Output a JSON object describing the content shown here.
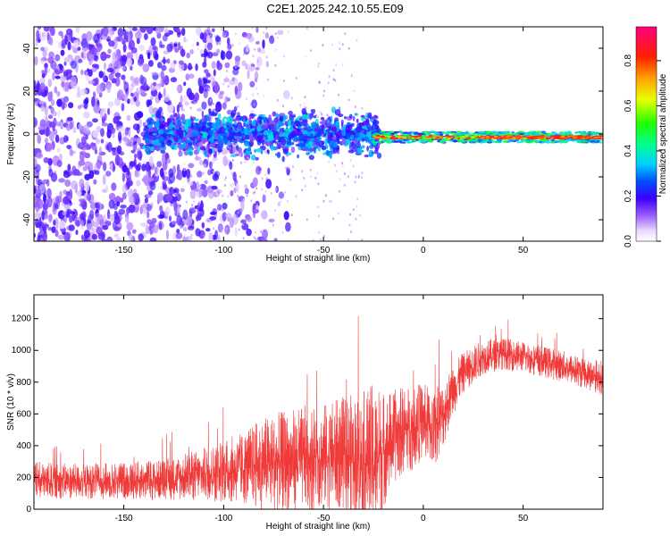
{
  "title": "C2E1.2025.242.10.55.E09",
  "chart_data": [
    {
      "type": "heatmap",
      "xlabel": "Height of straight line (km)",
      "ylabel": "Frequency (Hz)",
      "xlim": [
        -195,
        90
      ],
      "ylim": [
        -50,
        50
      ],
      "x_ticks": [
        -150,
        -100,
        -50,
        0,
        50
      ],
      "y_ticks": [
        -40,
        -20,
        0,
        20,
        40
      ],
      "colorbar": {
        "label": "Normalized spectral amplitude",
        "range": [
          0,
          0.95
        ],
        "ticks": [
          0.0,
          0.2,
          0.4,
          0.6,
          0.8
        ]
      },
      "grid": false
    },
    {
      "type": "line",
      "xlabel": "Height of straight line (km)",
      "ylabel": "SNR (10 * v/v)",
      "xlim": [
        -195,
        90
      ],
      "ylim": [
        0,
        1350
      ],
      "x_ticks": [
        -150,
        -100,
        -50,
        0,
        50
      ],
      "y_ticks": [
        0,
        200,
        400,
        600,
        800,
        1000,
        1200
      ],
      "series_color": "#f03a3a",
      "envelope": {
        "x": [
          -195,
          -170,
          -150,
          -130,
          -115,
          -100,
          -90,
          -80,
          -70,
          -60,
          -50,
          -40,
          -30,
          -25,
          -20,
          -15,
          -10,
          -5,
          0,
          5,
          10,
          15,
          20,
          30,
          40,
          50,
          60,
          70,
          80,
          90
        ],
        "mean": [
          180,
          175,
          180,
          185,
          210,
          240,
          260,
          290,
          300,
          320,
          330,
          350,
          330,
          300,
          380,
          450,
          500,
          520,
          560,
          500,
          600,
          750,
          860,
          960,
          980,
          960,
          930,
          900,
          860,
          830
        ],
        "spread": [
          120,
          110,
          120,
          130,
          160,
          200,
          230,
          300,
          320,
          330,
          340,
          360,
          420,
          500,
          380,
          300,
          280,
          270,
          240,
          260,
          220,
          160,
          130,
          110,
          100,
          100,
          100,
          100,
          100,
          110
        ]
      },
      "grid": false
    }
  ]
}
